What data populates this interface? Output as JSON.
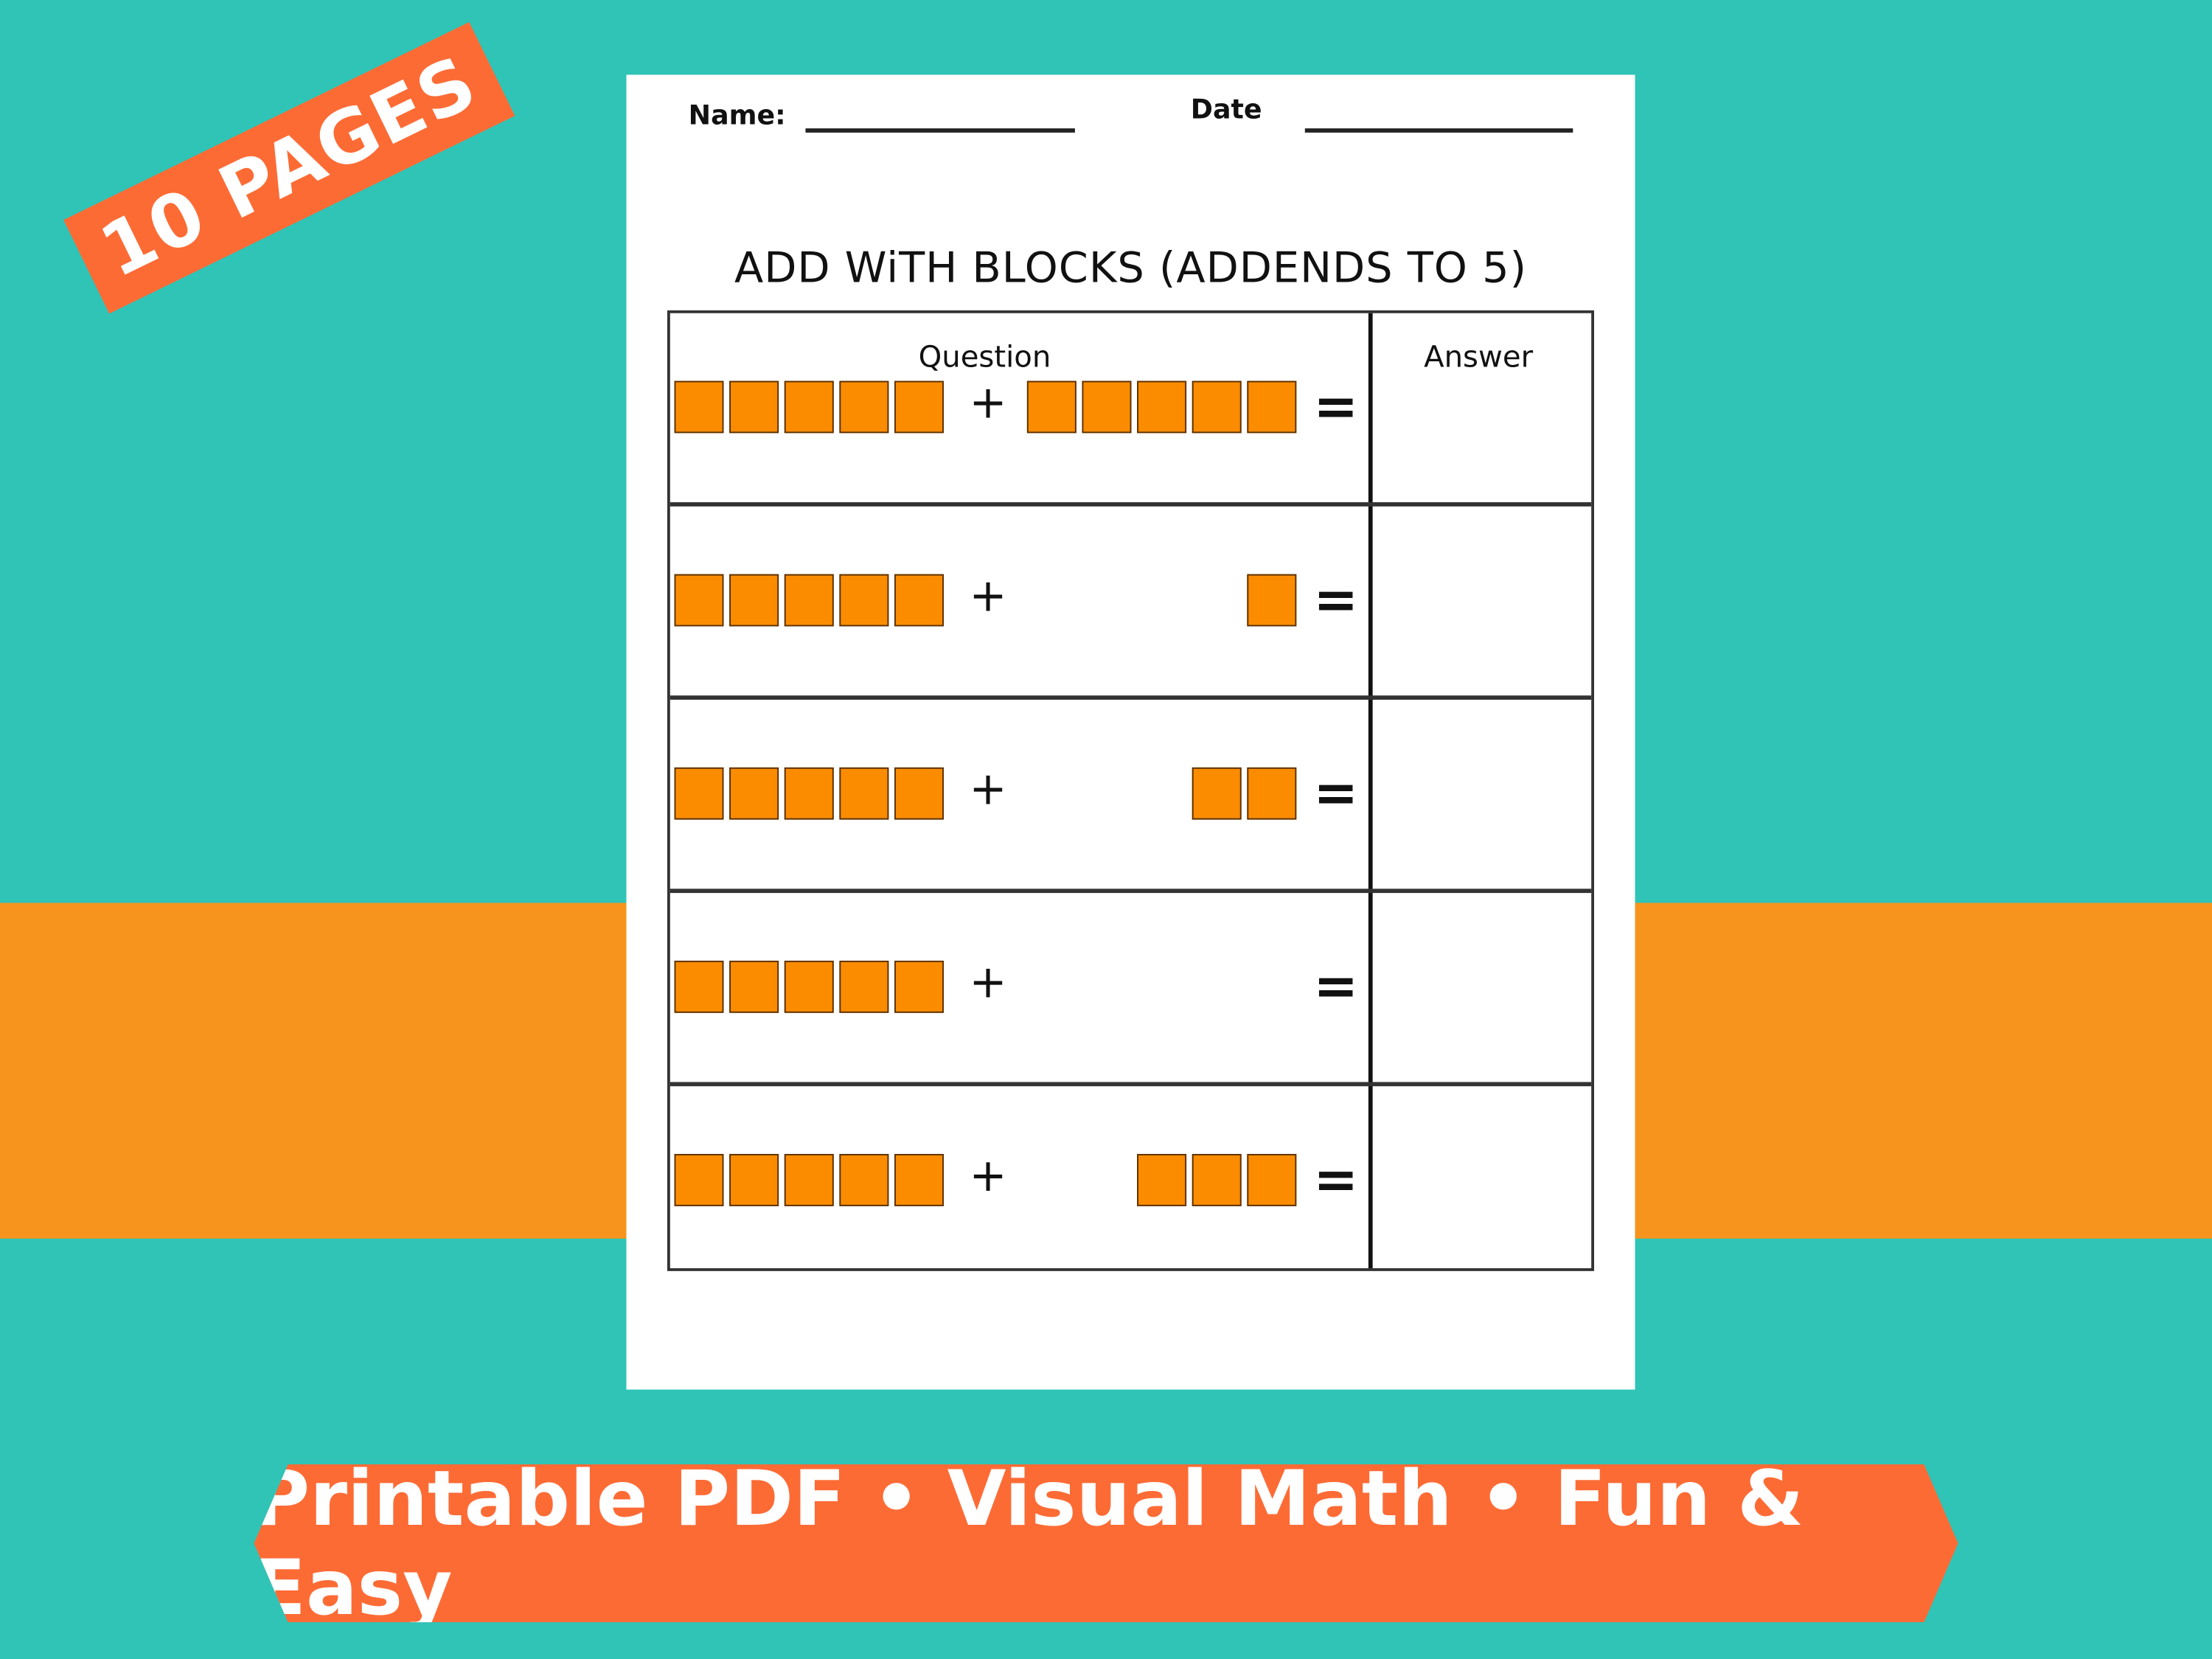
{
  "colors": {
    "background": "#2fc4b6",
    "stripe": "#f7941d",
    "accent": "#fd6b35",
    "block": "#fb8c00"
  },
  "badge": {
    "text": "10 PAGES"
  },
  "worksheet": {
    "name_label": "Name:",
    "date_label": "Date",
    "title": "ADD WiTH BLOCKS (ADDENDS TO 5)",
    "headers": {
      "question": "Question",
      "answer": "Answer"
    },
    "plus": "+",
    "equals": "=",
    "problems": [
      {
        "a": 5,
        "b": 5
      },
      {
        "a": 5,
        "b": 1
      },
      {
        "a": 5,
        "b": 2
      },
      {
        "a": 5,
        "b": 0
      },
      {
        "a": 5,
        "b": 3
      }
    ]
  },
  "banner": {
    "text": "Printable PDF • Visual Math • Fun & Easy"
  }
}
